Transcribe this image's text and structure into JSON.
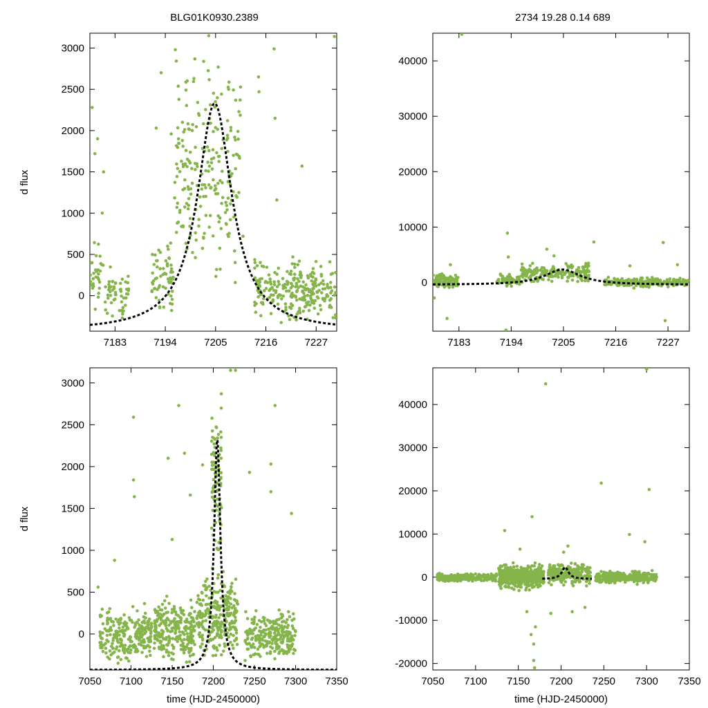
{
  "header": {
    "left_title": "BLG01K0930.2389",
    "right_title": "2734  19.28  0.14  689"
  },
  "chart_data": [
    {
      "panel": "top-left",
      "type": "scatter",
      "xlim": [
        7177.5,
        7231.5
      ],
      "ylim": [
        -430,
        3180
      ],
      "xticks": [
        7183,
        7194,
        7205,
        7216,
        7227
      ],
      "yticks": [
        0,
        500,
        1000,
        1500,
        2000,
        2500,
        3000
      ],
      "xlabel": "",
      "ylabel": "d flux",
      "point_color": "#84b44a",
      "fit": {
        "t0": 7204.8,
        "tE": 4.6,
        "peak": 2330,
        "base": -430
      },
      "scatter": [
        {
          "x_range": [
            7177.6,
            7180.5
          ],
          "y_range": [
            -420,
            1000
          ],
          "n": 30
        },
        {
          "x_range": [
            7180.8,
            7186.0
          ],
          "y_range": [
            -420,
            450
          ],
          "n": 55
        },
        {
          "x_range": [
            7191.0,
            7195.8
          ],
          "y_range": [
            -400,
            900
          ],
          "n": 65
        },
        {
          "x_range": [
            7196.0,
            7210.5
          ],
          "y_range": [
            -100,
            3150
          ],
          "n": 220
        },
        {
          "x_range": [
            7213.5,
            7231.3
          ],
          "y_range": [
            -400,
            550
          ],
          "n": 260
        }
      ],
      "scatter_points": [
        [
          7178.0,
          2280
        ],
        [
          7178.6,
          1720
        ],
        [
          7179.2,
          1900
        ],
        [
          7180.5,
          1500
        ],
        [
          7193.1,
          2700
        ],
        [
          7192.0,
          2030
        ],
        [
          7196.2,
          2980
        ],
        [
          7203.5,
          3150
        ],
        [
          7214.4,
          2650
        ],
        [
          7214.5,
          2470
        ],
        [
          7217.8,
          2990
        ],
        [
          7218.0,
          2150
        ],
        [
          7218.4,
          1160
        ],
        [
          7223.9,
          1570
        ],
        [
          7231.0,
          3140
        ],
        [
          7180.2,
          1000
        ],
        [
          7195.3,
          1960
        ],
        [
          7199.6,
          1230
        ],
        [
          7208.9,
          1700
        ],
        [
          7211.0,
          720
        ]
      ]
    },
    {
      "panel": "top-right",
      "type": "scatter",
      "xlim": [
        7177.5,
        7231.5
      ],
      "ylim": [
        -8800,
        45000
      ],
      "xticks": [
        7183,
        7194,
        7205,
        7216,
        7227
      ],
      "yticks": [
        0,
        10000,
        20000,
        30000,
        40000
      ],
      "xlabel": "",
      "ylabel": "",
      "point_color": "#84b44a",
      "fit": {
        "t0": 7204.8,
        "tE": 4.6,
        "peak": 2330,
        "base": -430
      },
      "scatter": [
        {
          "x_range": [
            7177.6,
            7182.8
          ],
          "y_range": [
            -1400,
            1900
          ],
          "n": 110
        },
        {
          "x_range": [
            7191.0,
            7195.8
          ],
          "y_range": [
            -1200,
            1800
          ],
          "n": 60
        },
        {
          "x_range": [
            7196.0,
            7210.5
          ],
          "y_range": [
            -300,
            3900
          ],
          "n": 200
        },
        {
          "x_range": [
            7213.5,
            7231.3
          ],
          "y_range": [
            -1100,
            1100
          ],
          "n": 220
        }
      ],
      "scatter_points": [
        [
          7183.6,
          44800
        ],
        [
          7193.2,
          8900
        ],
        [
          7177.8,
          -2800
        ],
        [
          7180.5,
          -6500
        ],
        [
          7192.9,
          -8600
        ],
        [
          7201.5,
          6000
        ],
        [
          7203.0,
          4800
        ],
        [
          7211.4,
          7300
        ],
        [
          7226.0,
          7200
        ],
        [
          7226.4,
          -6900
        ],
        [
          7181.2,
          3200
        ],
        [
          7193.4,
          4600
        ],
        [
          7219.0,
          3000
        ],
        [
          7229.0,
          3200
        ]
      ]
    },
    {
      "panel": "bottom-left",
      "type": "scatter",
      "xlim": [
        7050,
        7350
      ],
      "ylim": [
        -430,
        3180
      ],
      "xticks": [
        7050,
        7100,
        7150,
        7200,
        7250,
        7300,
        7350
      ],
      "yticks": [
        0,
        500,
        1000,
        1500,
        2000,
        2500,
        3000
      ],
      "xlabel": "time (HJD-2450000)",
      "ylabel": "d flux",
      "point_color": "#84b44a",
      "fit": {
        "t0": 7204.8,
        "tE": 4.6,
        "peak": 2330,
        "base": -430
      },
      "scatter": [
        {
          "x_range": [
            7062,
            7125
          ],
          "y_range": [
            -420,
            400
          ],
          "n": 260
        },
        {
          "x_range": [
            7128,
            7178
          ],
          "y_range": [
            -420,
            500
          ],
          "n": 260
        },
        {
          "x_range": [
            7180,
            7230
          ],
          "y_range": [
            -420,
            900
          ],
          "n": 280
        },
        {
          "x_range": [
            7198,
            7210
          ],
          "y_range": [
            500,
            3150
          ],
          "n": 90
        },
        {
          "x_range": [
            7238,
            7300
          ],
          "y_range": [
            -420,
            400
          ],
          "n": 250
        }
      ],
      "scatter_points": [
        [
          7103,
          2590
        ],
        [
          7103,
          1840
        ],
        [
          7104,
          1640
        ],
        [
          7080,
          880
        ],
        [
          7060,
          560
        ],
        [
          7145,
          2100
        ],
        [
          7158,
          2730
        ],
        [
          7165,
          2160
        ],
        [
          7187,
          2020
        ],
        [
          7227,
          3150
        ],
        [
          7221,
          3150
        ],
        [
          7270,
          2030
        ],
        [
          7275,
          2730
        ],
        [
          7270,
          1700
        ],
        [
          7295,
          1440
        ],
        [
          7244,
          1930
        ],
        [
          7172,
          1660
        ],
        [
          7150,
          1130
        ]
      ]
    },
    {
      "panel": "bottom-right",
      "type": "scatter",
      "xlim": [
        7050,
        7350
      ],
      "ylim": [
        -21500,
        48500
      ],
      "xticks": [
        7050,
        7100,
        7150,
        7200,
        7250,
        7300,
        7350
      ],
      "yticks": [
        -20000,
        -10000,
        0,
        10000,
        20000,
        30000,
        40000
      ],
      "xlabel": "time (HJD-2450000)",
      "ylabel": "",
      "point_color": "#84b44a",
      "fit": {
        "t0": 7204.8,
        "tE": 4.6,
        "peak": 2330,
        "base": -430,
        "x_range": [
          7178,
          7236
        ]
      },
      "scatter": [
        {
          "x_range": [
            7055,
            7125
          ],
          "y_range": [
            -1200,
            1000
          ],
          "n": 300
        },
        {
          "x_range": [
            7127,
            7180
          ],
          "y_range": [
            -3500,
            3800
          ],
          "n": 500
        },
        {
          "x_range": [
            7185,
            7235
          ],
          "y_range": [
            -2500,
            4200
          ],
          "n": 260
        },
        {
          "x_range": [
            7240,
            7312
          ],
          "y_range": [
            -1800,
            1800
          ],
          "n": 330
        }
      ],
      "scatter_points": [
        [
          7182,
          44800
        ],
        [
          7300,
          48200
        ],
        [
          7247,
          21800
        ],
        [
          7303,
          20300
        ],
        [
          7166,
          14000
        ],
        [
          7134,
          10800
        ],
        [
          7280,
          9900
        ],
        [
          7298,
          8200
        ],
        [
          7168,
          -15500
        ],
        [
          7168,
          -19300
        ],
        [
          7169,
          -21000
        ],
        [
          7165,
          -13300
        ],
        [
          7170,
          -11500
        ],
        [
          7160,
          -8000
        ],
        [
          7213,
          -8000
        ],
        [
          7188,
          -8400
        ],
        [
          7228,
          -7000
        ],
        [
          7152,
          6500
        ],
        [
          7208,
          7200
        ],
        [
          7203,
          5800
        ]
      ]
    }
  ]
}
